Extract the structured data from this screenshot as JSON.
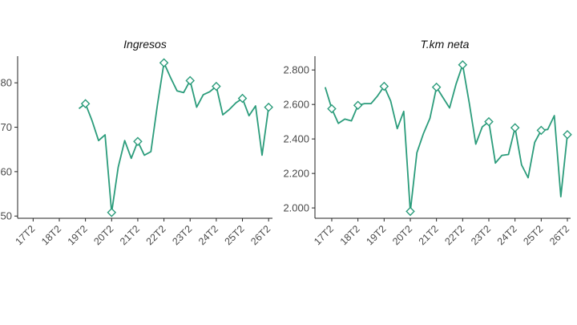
{
  "chart_data": [
    {
      "type": "line",
      "title": "Ingresos",
      "xlabel": "",
      "ylabel": "",
      "x": [
        "19Q1",
        "19Q2",
        "19Q3",
        "19Q4",
        "20Q1",
        "20Q2",
        "20Q3",
        "20Q4",
        "21Q1",
        "21Q2",
        "21Q3",
        "21Q4",
        "22Q1",
        "22Q2",
        "22Q3",
        "22Q4",
        "23Q1",
        "23Q2",
        "23Q3",
        "23Q4",
        "24Q1",
        "24Q2",
        "24Q3",
        "24Q4",
        "25Q1",
        "25Q2",
        "25Q3",
        "25Q4",
        "26Q1",
        "26Q2"
      ],
      "values": [
        74.2,
        75.3,
        71.5,
        67.0,
        68.3,
        50.8,
        61.0,
        67.0,
        63.0,
        66.8,
        63.7,
        64.5,
        75.0,
        84.5,
        81.2,
        78.2,
        77.8,
        80.5,
        74.5,
        77.3,
        78.0,
        79.2,
        72.8,
        74.0,
        75.5,
        76.5,
        72.6,
        74.8,
        63.7,
        74.5
      ],
      "markers_at": [
        "19Q2",
        "20Q2",
        "21Q2",
        "22Q2",
        "23Q2",
        "24Q2",
        "25Q2",
        "26Q2"
      ],
      "x_tick_labels": [
        "17T2",
        "18T2",
        "19T2",
        "20T2",
        "21T2",
        "22T2",
        "23T2",
        "24T2",
        "25T2",
        "26T2"
      ],
      "y_tick_labels": [
        "50",
        "60",
        "70",
        "80"
      ],
      "ylim": [
        49.5,
        86
      ],
      "grid": false,
      "color": "#2b9c7b"
    },
    {
      "type": "line",
      "title": "T.km neta",
      "xlabel": "",
      "ylabel": "",
      "x": [
        "17Q1",
        "17Q2",
        "17Q3",
        "17Q4",
        "18Q1",
        "18Q2",
        "18Q3",
        "18Q4",
        "19Q1",
        "19Q2",
        "19Q3",
        "19Q4",
        "20Q1",
        "20Q2",
        "20Q3",
        "20Q4",
        "21Q1",
        "21Q2",
        "21Q3",
        "21Q4",
        "22Q1",
        "22Q2",
        "22Q3",
        "22Q4",
        "23Q1",
        "23Q2",
        "23Q3",
        "23Q4",
        "24Q1",
        "24Q2",
        "24Q3",
        "24Q4",
        "25Q1",
        "25Q2",
        "25Q3",
        "25Q4",
        "26Q1",
        "26Q2"
      ],
      "values": [
        2700,
        2575,
        2490,
        2515,
        2505,
        2595,
        2605,
        2605,
        2650,
        2705,
        2620,
        2460,
        2560,
        1980,
        2320,
        2430,
        2520,
        2700,
        2640,
        2580,
        2720,
        2830,
        2610,
        2370,
        2470,
        2500,
        2260,
        2305,
        2310,
        2465,
        2250,
        2175,
        2380,
        2450,
        2455,
        2535,
        2065,
        2425
      ],
      "markers_at": [
        "17Q2",
        "18Q2",
        "19Q2",
        "20Q2",
        "21Q2",
        "22Q2",
        "23Q2",
        "24Q2",
        "25Q2",
        "26Q2"
      ],
      "x_tick_labels": [
        "17T2",
        "18T2",
        "19T2",
        "20T2",
        "21T2",
        "22T2",
        "23T2",
        "24T2",
        "25T2",
        "26T2"
      ],
      "y_tick_labels": [
        "2.000",
        "2.200",
        "2.400",
        "2.600",
        "2.800"
      ],
      "ylim": [
        1940,
        2880
      ],
      "grid": false,
      "color": "#2b9c7b"
    }
  ]
}
